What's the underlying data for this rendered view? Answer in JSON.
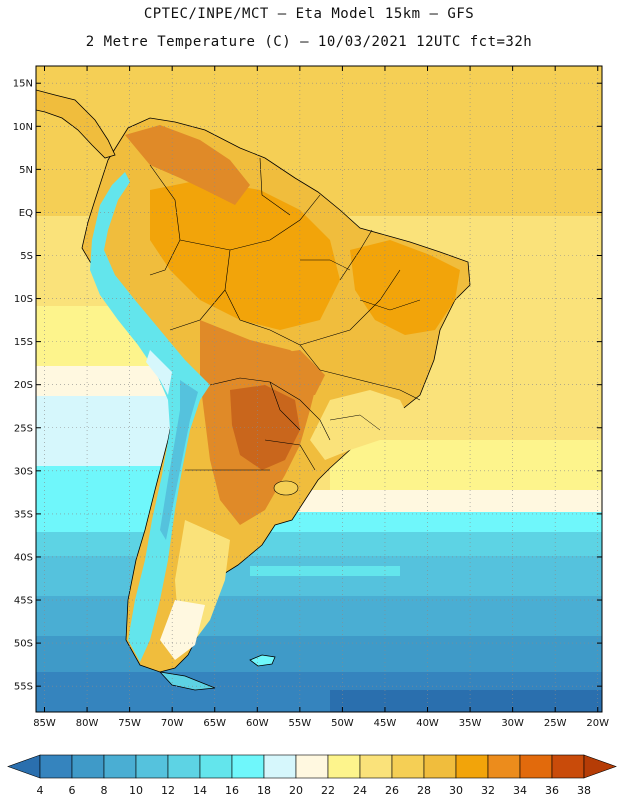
{
  "header": {
    "line1": "CPTEC/INPE/MCT –  Eta Model 15km – GFS",
    "line2": "2 Metre Temperature (C) – 10/03/2021 12UTC fct=32h"
  },
  "map": {
    "lat_labels": [
      "15N",
      "10N",
      "5N",
      "EQ",
      "5S",
      "10S",
      "15S",
      "20S",
      "25S",
      "30S",
      "35S",
      "40S",
      "45S",
      "50S",
      "55S"
    ],
    "lat_values": [
      15,
      10,
      5,
      0,
      -5,
      -10,
      -15,
      -20,
      -25,
      -30,
      -35,
      -40,
      -45,
      -50,
      -55
    ],
    "lon_labels": [
      "85W",
      "80W",
      "75W",
      "70W",
      "65W",
      "60W",
      "55W",
      "50W",
      "45W",
      "40W",
      "35W",
      "30W",
      "25W",
      "20W"
    ],
    "lon_values": [
      -85,
      -80,
      -75,
      -70,
      -65,
      -60,
      -55,
      -50,
      -45,
      -40,
      -35,
      -30,
      -25,
      -20
    ],
    "lon_range": [
      -86,
      -19.5
    ],
    "lat_range": [
      -58,
      17
    ]
  },
  "colorbar": {
    "labels": [
      "4",
      "6",
      "8",
      "10",
      "12",
      "14",
      "16",
      "18",
      "20",
      "22",
      "24",
      "26",
      "28",
      "30",
      "32",
      "34",
      "36",
      "38"
    ],
    "colors": [
      "#2a6fae",
      "#3584be",
      "#3f9ac8",
      "#4aaed3",
      "#55c2dd",
      "#5dd3e4",
      "#63e5ec",
      "#6ff7fb",
      "#d6f7fc",
      "#fff8e0",
      "#fdf48c",
      "#fae27a",
      "#f5cf55",
      "#f0bd3d",
      "#f2a40a",
      "#ec8c1c",
      "#e26a0c",
      "#c94b0a",
      "#b53c06"
    ]
  },
  "palette": {
    "ocean_warm": "#fae27a",
    "ocean_hot": "#f5cf55",
    "land_hot": "#e08a28",
    "land_vhot": "#c9661c",
    "andes": "#63e5ec",
    "cold": "#3584be"
  }
}
